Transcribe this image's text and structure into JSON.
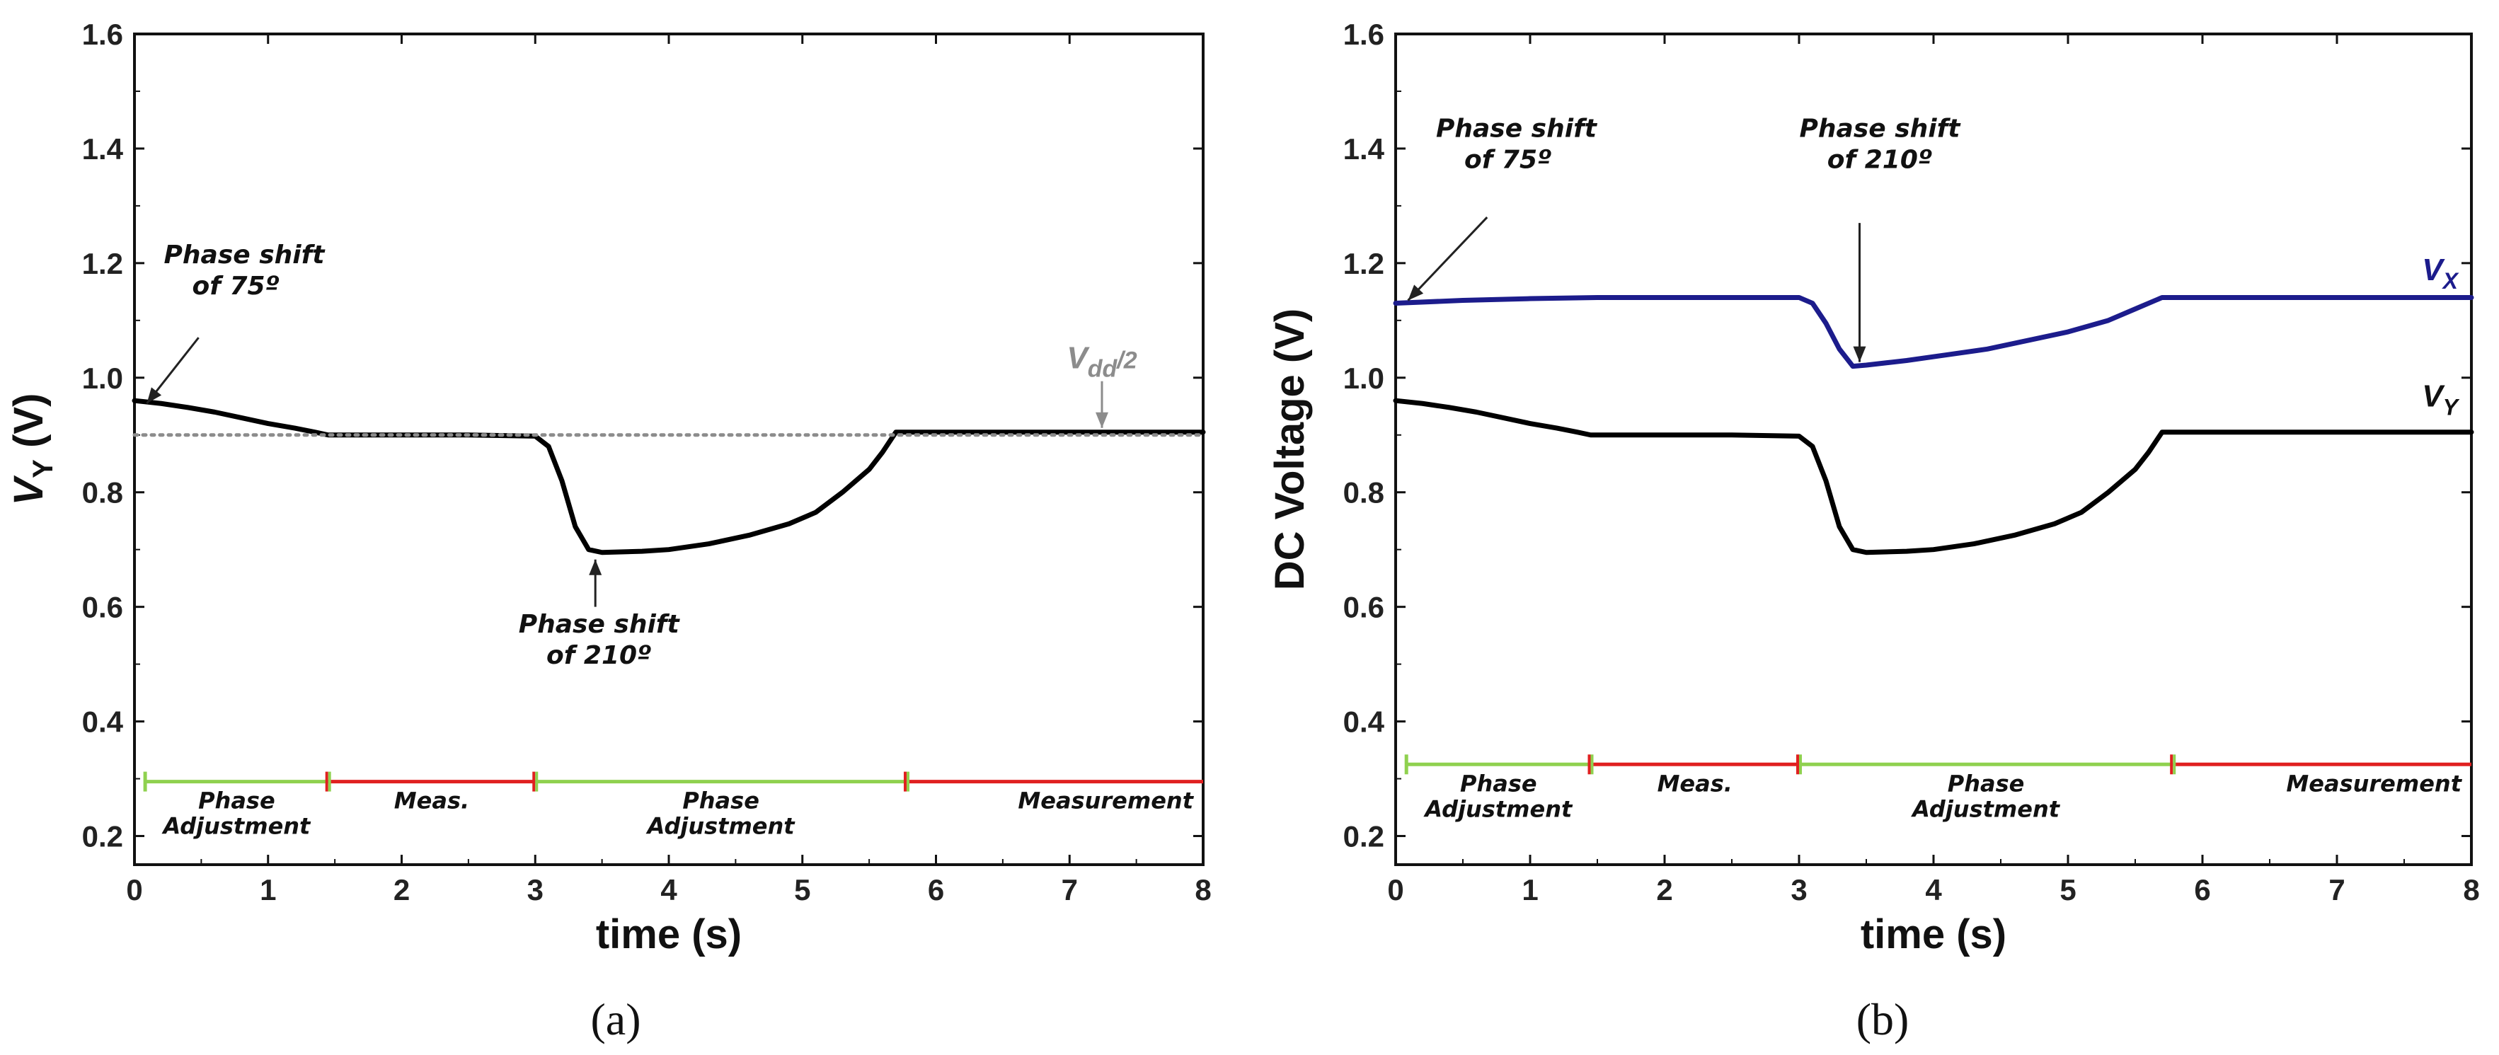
{
  "chart_data": [
    {
      "type": "line",
      "panel_label": "(a)",
      "xlabel": "time (s)",
      "ylabel": "V",
      "ylabel_sub": "Y",
      "ylabel_unit": "(V)",
      "xlim": [
        0,
        8
      ],
      "ylim": [
        0.15,
        1.6
      ],
      "xticks": [
        0,
        1,
        2,
        3,
        4,
        5,
        6,
        7,
        8
      ],
      "yticks": [
        0.2,
        0.4,
        0.6,
        0.8,
        1.0,
        1.2,
        1.4,
        1.6
      ],
      "ytick_labels": [
        "0.2",
        "0.4",
        "0.6",
        "0.8",
        "1.0",
        "1.2",
        "1.4",
        "1.6"
      ],
      "series": [
        {
          "name": "V_Y",
          "color": "#000000",
          "x": [
            0,
            0.2,
            0.4,
            0.6,
            0.8,
            1.0,
            1.2,
            1.35,
            1.45,
            2.0,
            2.5,
            3.0,
            3.1,
            3.2,
            3.3,
            3.4,
            3.5,
            3.8,
            4.0,
            4.3,
            4.6,
            4.9,
            5.1,
            5.3,
            5.5,
            5.6,
            5.7,
            6.0,
            7.0,
            8.0
          ],
          "y": [
            0.96,
            0.955,
            0.948,
            0.94,
            0.93,
            0.92,
            0.912,
            0.905,
            0.9,
            0.9,
            0.9,
            0.898,
            0.88,
            0.82,
            0.74,
            0.7,
            0.695,
            0.697,
            0.7,
            0.71,
            0.725,
            0.745,
            0.765,
            0.8,
            0.84,
            0.87,
            0.905,
            0.905,
            0.905,
            0.905
          ]
        },
        {
          "name": "Vdd/2",
          "color": "#8c8c8c",
          "style": "dotted",
          "x": [
            0,
            8
          ],
          "y": [
            0.9,
            0.9
          ]
        }
      ],
      "phase_bar": {
        "y": 0.295,
        "segments": [
          {
            "start": 0.08,
            "end": 1.45,
            "color": "#8fd14f",
            "labels": [
              "Phase",
              "Adjustment"
            ]
          },
          {
            "start": 1.45,
            "end": 3.0,
            "color": "#e02020",
            "labels": [
              "Meas."
            ]
          },
          {
            "start": 3.0,
            "end": 5.78,
            "color": "#8fd14f",
            "labels": [
              "Phase",
              "Adjustment"
            ]
          },
          {
            "start": 5.78,
            "end": 8.0,
            "color": "#e02020",
            "labels": [
              "Measurement"
            ]
          }
        ]
      },
      "annotations": [
        {
          "lines": [
            "Phase shift",
            "of 75º"
          ],
          "x": 0.05,
          "y": 0.96
        },
        {
          "lines": [
            "Phase shift",
            "of 210º"
          ],
          "x": 3.45,
          "y": 0.69
        },
        {
          "lines": [
            "Vdd/2"
          ],
          "text_main": "V",
          "text_sub": "dd",
          "text_suffix": "/2",
          "x": 7.2,
          "y": 0.905
        }
      ]
    },
    {
      "type": "line",
      "panel_label": "(b)",
      "xlabel": "time (s)",
      "ylabel": "DC Voltage (V)",
      "xlim": [
        0,
        8
      ],
      "ylim": [
        0.15,
        1.6
      ],
      "xticks": [
        0,
        1,
        2,
        3,
        4,
        5,
        6,
        7,
        8
      ],
      "yticks": [
        0.2,
        0.4,
        0.6,
        0.8,
        1.0,
        1.2,
        1.4,
        1.6
      ],
      "ytick_labels": [
        "0.2",
        "0.4",
        "0.6",
        "0.8",
        "1.0",
        "1.2",
        "1.4",
        "1.6"
      ],
      "series": [
        {
          "name": "V_X",
          "color": "#1c1c8c",
          "x": [
            0,
            0.5,
            1.0,
            1.5,
            2.0,
            2.5,
            3.0,
            3.1,
            3.2,
            3.3,
            3.4,
            3.5,
            3.8,
            4.1,
            4.4,
            4.7,
            5.0,
            5.3,
            5.5,
            5.7,
            6.0,
            7.0,
            8.0
          ],
          "y": [
            1.13,
            1.135,
            1.138,
            1.14,
            1.14,
            1.14,
            1.14,
            1.13,
            1.095,
            1.05,
            1.02,
            1.022,
            1.03,
            1.04,
            1.05,
            1.065,
            1.08,
            1.1,
            1.12,
            1.14,
            1.14,
            1.14,
            1.14
          ]
        },
        {
          "name": "V_Y",
          "color": "#000000",
          "x": [
            0,
            0.2,
            0.4,
            0.6,
            0.8,
            1.0,
            1.2,
            1.35,
            1.45,
            2.0,
            2.5,
            3.0,
            3.1,
            3.2,
            3.3,
            3.4,
            3.5,
            3.8,
            4.0,
            4.3,
            4.6,
            4.9,
            5.1,
            5.3,
            5.5,
            5.6,
            5.7,
            6.0,
            7.0,
            8.0
          ],
          "y": [
            0.96,
            0.955,
            0.948,
            0.94,
            0.93,
            0.92,
            0.912,
            0.905,
            0.9,
            0.9,
            0.9,
            0.898,
            0.88,
            0.82,
            0.74,
            0.7,
            0.695,
            0.697,
            0.7,
            0.71,
            0.725,
            0.745,
            0.765,
            0.8,
            0.84,
            0.87,
            0.905,
            0.905,
            0.905,
            0.905
          ]
        }
      ],
      "series_labels": [
        {
          "main": "V",
          "sub": "X",
          "color": "#1c1c8c",
          "x": 7.9,
          "y": 1.17
        },
        {
          "main": "V",
          "sub": "Y",
          "color": "#111111",
          "x": 7.9,
          "y": 0.95
        }
      ],
      "phase_bar": {
        "y": 0.325,
        "segments": [
          {
            "start": 0.08,
            "end": 1.45,
            "color": "#8fd14f",
            "labels": [
              "Phase",
              "Adjustment"
            ]
          },
          {
            "start": 1.45,
            "end": 3.0,
            "color": "#e02020",
            "labels": [
              "Meas."
            ]
          },
          {
            "start": 3.0,
            "end": 5.78,
            "color": "#8fd14f",
            "labels": [
              "Phase",
              "Adjustment"
            ]
          },
          {
            "start": 5.78,
            "end": 8.0,
            "color": "#e02020",
            "labels": [
              "Measurement"
            ]
          }
        ]
      },
      "annotations": [
        {
          "lines": [
            "Phase shift",
            "of 75º"
          ],
          "x": 0.05,
          "y": 1.13
        },
        {
          "lines": [
            "Phase shift",
            "of 210º"
          ],
          "x": 3.45,
          "y": 1.02
        }
      ]
    }
  ]
}
